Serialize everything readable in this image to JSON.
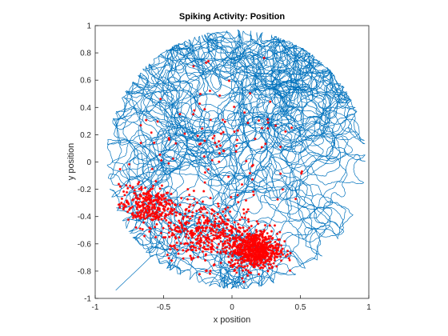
{
  "chart_data": {
    "type": "scatter",
    "title": "Spiking Activity: Position",
    "xlabel": "x position",
    "ylabel": "y position",
    "xlim": [
      -1,
      1
    ],
    "ylim": [
      -1,
      1
    ],
    "xticks": [
      -1,
      -0.5,
      0,
      0.5,
      1
    ],
    "yticks": [
      -1,
      -0.8,
      -0.6,
      -0.4,
      -0.2,
      0,
      0.2,
      0.4,
      0.6,
      0.8,
      1
    ],
    "xtick_labels": [
      "-1",
      "-0.5",
      "0",
      "0.5",
      "1"
    ],
    "ytick_labels": [
      "-1",
      "-0.8",
      "-0.6",
      "-0.4",
      "-0.2",
      "0",
      "0.2",
      "0.4",
      "0.6",
      "0.8",
      "1"
    ],
    "grid": false,
    "arena": {
      "center": [
        0.03,
        0.02
      ],
      "radius": 0.95
    },
    "series": [
      {
        "kind": "trajectory",
        "color": "#0072BD",
        "description_points": [
          [
            -0.85,
            -0.94
          ],
          [
            -0.65,
            -0.75
          ],
          [
            -0.5,
            -0.55
          ],
          [
            -0.3,
            -0.3
          ],
          [
            0.0,
            0.0
          ],
          [
            0.2,
            0.3
          ],
          [
            0.4,
            0.5
          ],
          [
            0.1,
            0.8
          ],
          [
            -0.3,
            0.6
          ],
          [
            -0.6,
            0.2
          ],
          [
            -0.4,
            -0.4
          ],
          [
            0.2,
            -0.65
          ]
        ]
      },
      {
        "kind": "spikes",
        "color": "#FF0000",
        "clusters": [
          {
            "center": [
              0.17,
              -0.65
            ],
            "spread": 0.09,
            "weight": 0.42
          },
          {
            "center": [
              -0.62,
              -0.32
            ],
            "spread": 0.1,
            "weight": 0.2
          },
          {
            "center": [
              -0.25,
              -0.5
            ],
            "spread": 0.14,
            "weight": 0.18
          },
          {
            "center": [
              0.0,
              -0.55
            ],
            "spread": 0.14,
            "weight": 0.12
          },
          {
            "center": [
              -0.05,
              0.05
            ],
            "spread": 0.35,
            "weight": 0.08
          }
        ]
      }
    ]
  }
}
